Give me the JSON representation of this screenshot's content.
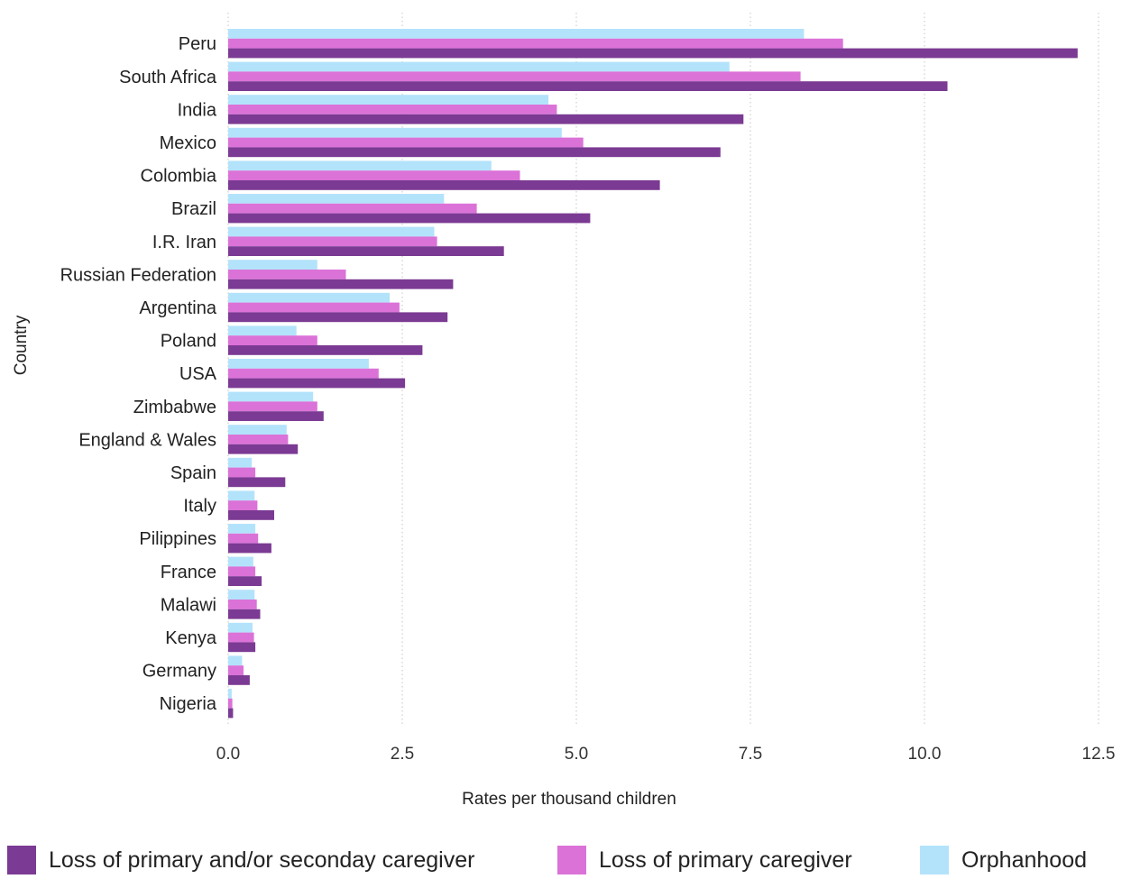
{
  "chart_data": {
    "type": "bar",
    "orientation": "horizontal",
    "categories": [
      "Peru",
      "South Africa",
      "India",
      "Mexico",
      "Colombia",
      "Brazil",
      "I.R. Iran",
      "Russian Federation",
      "Argentina",
      "Poland",
      "USA",
      "Zimbabwe",
      "England & Wales",
      "Spain",
      "Italy",
      "Pilippines",
      "France",
      "Malawi",
      "Kenya",
      "Germany",
      "Nigeria"
    ],
    "series": [
      {
        "name": "Orphanhood",
        "color": "#b3e3fb",
        "values": [
          8.27,
          7.2,
          4.6,
          4.79,
          3.78,
          3.1,
          2.96,
          1.28,
          2.32,
          0.98,
          2.02,
          1.22,
          0.84,
          0.34,
          0.38,
          0.39,
          0.36,
          0.38,
          0.35,
          0.2,
          0.05
        ]
      },
      {
        "name": "Loss of primary caregiver",
        "color": "#db72d8",
        "values": [
          8.83,
          8.22,
          4.72,
          5.1,
          4.19,
          3.57,
          3.0,
          1.69,
          2.46,
          1.28,
          2.16,
          1.28,
          0.86,
          0.39,
          0.42,
          0.43,
          0.39,
          0.41,
          0.37,
          0.22,
          0.06
        ]
      },
      {
        "name": "Loss of primary and/or seconday caregiver",
        "color": "#7b3a93",
        "values": [
          12.2,
          10.33,
          7.4,
          7.07,
          6.2,
          5.2,
          3.96,
          3.23,
          3.15,
          2.79,
          2.54,
          1.37,
          1.0,
          0.82,
          0.66,
          0.62,
          0.48,
          0.46,
          0.39,
          0.31,
          0.07
        ]
      }
    ],
    "xlim": [
      0,
      12.5
    ],
    "xticks": [
      "0.0",
      "2.5",
      "5.0",
      "7.5",
      "10.0",
      "12.5"
    ],
    "xlabel": "Rates per thousand children",
    "ylabel": "Country",
    "grid": "vertical dotted",
    "legend_position": "bottom"
  },
  "legend": [
    {
      "label": "Loss of primary and/or seconday caregiver",
      "color": "#7b3a93"
    },
    {
      "label": "Loss of primary caregiver",
      "color": "#db72d8"
    },
    {
      "label": "Orphanhood",
      "color": "#b3e3fb"
    }
  ]
}
